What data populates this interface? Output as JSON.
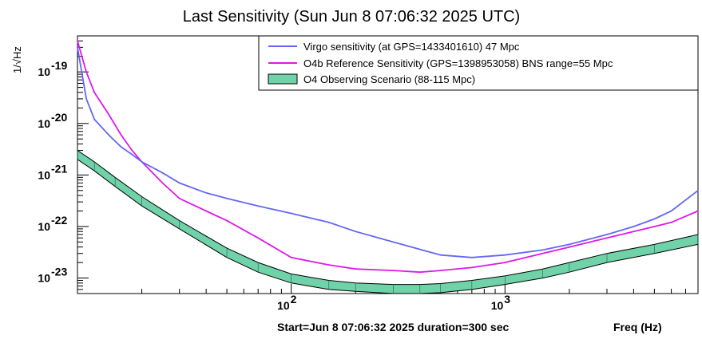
{
  "chart_data": {
    "type": "line",
    "title": "Last Sensitivity (Sun Jun  8 07:06:32 2025 UTC)",
    "ylabel": "1/√Hz",
    "xlabel": "Freq (Hz)",
    "footer": "Start=Jun  8 07:06:32 2025 duration=300 sec",
    "x_scale": "log",
    "y_scale": "log",
    "xlim": [
      10,
      8000
    ],
    "ylim": [
      5e-24,
      5e-19
    ],
    "x_ticks": [
      {
        "value": 100,
        "mantissa": "10",
        "exponent": "2"
      },
      {
        "value": 1000,
        "mantissa": "10",
        "exponent": "3"
      }
    ],
    "y_ticks": [
      {
        "value": 1e-19,
        "mantissa": "10",
        "exponent": "-19"
      },
      {
        "value": 1e-20,
        "mantissa": "10",
        "exponent": "-20"
      },
      {
        "value": 1e-21,
        "mantissa": "10",
        "exponent": "-21"
      },
      {
        "value": 1e-22,
        "mantissa": "10",
        "exponent": "-22"
      },
      {
        "value": 1e-23,
        "mantissa": "10",
        "exponent": "-23"
      }
    ],
    "legend_position": "top-right",
    "series": [
      {
        "name": "Virgo sensitivity (at GPS=1433401610) 47 Mpc",
        "color": "#6466f7",
        "kind": "line",
        "x": [
          10,
          11,
          12,
          14,
          16,
          18,
          20,
          25,
          30,
          40,
          50,
          70,
          100,
          150,
          200,
          300,
          400,
          500,
          700,
          1000,
          1500,
          2000,
          3000,
          4000,
          5000,
          6000,
          8000
        ],
        "y": [
          3e-19,
          3e-20,
          1.2e-20,
          6e-21,
          3.5e-21,
          2.5e-21,
          1.8e-21,
          1.1e-21,
          7e-22,
          4.5e-22,
          3.5e-22,
          2.5e-22,
          1.8e-22,
          1.2e-22,
          8e-23,
          5e-23,
          3.6e-23,
          2.8e-23,
          2.5e-23,
          2.8e-23,
          3.5e-23,
          4.5e-23,
          7e-23,
          1e-22,
          1.4e-22,
          2e-22,
          5e-22
        ]
      },
      {
        "name": "O4b Reference Sensitivity (GPS=1398953058) BNS range=55 Mpc",
        "color": "#dd19e9",
        "kind": "line",
        "x": [
          10,
          11,
          12,
          14,
          16,
          18,
          20,
          25,
          30,
          40,
          50,
          70,
          100,
          150,
          200,
          300,
          400,
          500,
          700,
          1000,
          1500,
          2000,
          3000,
          4000,
          5000,
          6000,
          8000
        ],
        "y": [
          4e-19,
          1e-19,
          4e-20,
          1.5e-20,
          6e-21,
          3e-21,
          1.8e-21,
          7e-22,
          3.5e-22,
          2e-22,
          1.3e-22,
          6e-23,
          2.5e-23,
          1.8e-23,
          1.5e-23,
          1.4e-23,
          1.3e-23,
          1.4e-23,
          1.6e-23,
          2e-23,
          3e-23,
          4e-23,
          6e-23,
          8e-23,
          1e-22,
          1.2e-22,
          2e-22
        ]
      },
      {
        "name": "O4 Observing Scenario (88-115 Mpc)",
        "color": "#6fd2a9",
        "kind": "band",
        "x": [
          10,
          12,
          15,
          20,
          30,
          50,
          70,
          100,
          150,
          200,
          300,
          400,
          500,
          700,
          1000,
          1500,
          2000,
          3000,
          5000,
          8000
        ],
        "y_low": [
          2e-21,
          1.2e-21,
          6e-22,
          2.5e-22,
          9e-23,
          2.5e-23,
          1.3e-23,
          8e-24,
          6e-24,
          5.5e-24,
          5e-24,
          5e-24,
          5.2e-24,
          6e-24,
          7.5e-24,
          1e-23,
          1.3e-23,
          2e-23,
          3e-23,
          4.5e-23
        ],
        "y_high": [
          3e-21,
          1.8e-21,
          9e-22,
          3.8e-22,
          1.3e-22,
          3.8e-23,
          2e-23,
          1.2e-23,
          9e-24,
          8e-24,
          7.5e-24,
          7.5e-24,
          7.8e-24,
          9e-24,
          1.1e-23,
          1.5e-23,
          2e-23,
          3e-23,
          4.5e-23,
          7e-23
        ]
      }
    ]
  }
}
